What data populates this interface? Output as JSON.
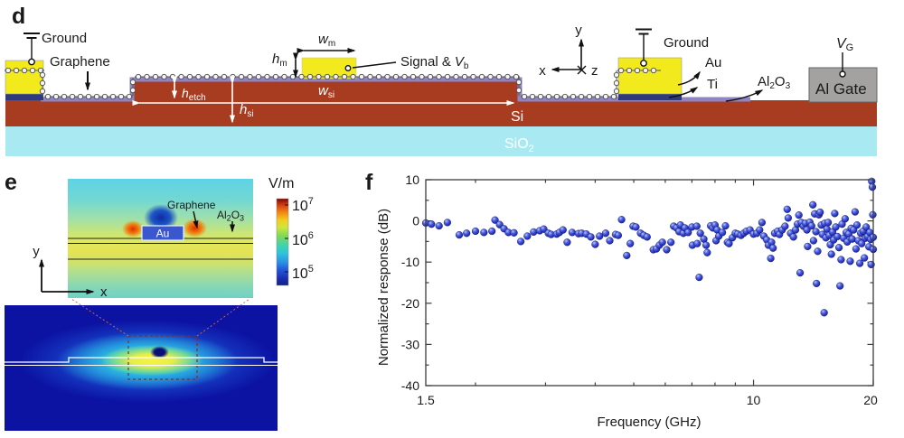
{
  "colors": {
    "au": "#f3ea1d",
    "ti": "#2e3a7c",
    "si": "#a83c20",
    "sio2": "#a9eaf2",
    "al2o3": "#8f85c4",
    "gate": "#a3a2a1",
    "marker": "#2a33c0",
    "sim_bg": "#0c12a2",
    "colorbar_scale": [
      "#7a0403",
      "#d23b10",
      "#f08012",
      "#f3cf1e",
      "#cfe63d",
      "#7fd957",
      "#3fd3b0",
      "#2fc4dc",
      "#2b93e4",
      "#2357d8",
      "#1a2fb0",
      "#101f86"
    ]
  },
  "panels": {
    "d": {
      "tag": "d",
      "labels": {
        "ground_left": "Ground",
        "graphene": "Graphene",
        "wm": {
          "base": "w",
          "sub": "m"
        },
        "hm": {
          "base": "h",
          "sub": "m"
        },
        "signal_amp": "Signal &",
        "vb": {
          "base": "V",
          "sub": "b"
        },
        "wsi": {
          "base": "w",
          "sub": "si"
        },
        "hetch": {
          "base": "h",
          "sub": "etch"
        },
        "hsi": {
          "base": "h",
          "sub": "si"
        },
        "si": "Si",
        "sio2": {
          "base": "SiO",
          "sub": "2"
        },
        "ground_right": "Ground",
        "au": "Au",
        "ti": "Ti",
        "al2o3": {
          "p1": "Al",
          "s1": "2",
          "p2": "O",
          "s2": "3"
        },
        "al_gate": "Al Gate",
        "vg": {
          "base": "V",
          "sub": "G"
        },
        "axis_x": "x",
        "axis_y": "y",
        "axis_z": "z"
      }
    },
    "e": {
      "tag": "e",
      "colorbar": {
        "title": "V/m",
        "ticks": [
          {
            "base": "10",
            "sup": "7"
          },
          {
            "base": "10",
            "sup": "6"
          },
          {
            "base": "10",
            "sup": "5"
          }
        ]
      },
      "inset": {
        "graphene": "Graphene",
        "al2o3": {
          "p1": "Al",
          "s1": "2",
          "p2": "O",
          "s2": "3"
        },
        "au": "Au"
      },
      "axis_x": "x",
      "axis_y": "y"
    },
    "f": {
      "tag": "f",
      "chart_data": {
        "type": "scatter",
        "x_scale": "log",
        "xlabel": "Frequency (GHz)",
        "ylabel": "Normalized response  (dB)",
        "xlim": [
          1.5,
          20
        ],
        "ylim": [
          -40,
          10
        ],
        "x_tick_labels": [
          {
            "v": 1.5,
            "t": "1.5"
          },
          {
            "v": 10,
            "t": "10"
          },
          {
            "v": 20,
            "t": "20"
          }
        ],
        "x_major_ticks": [
          10,
          20
        ],
        "x_minor_ticks": [
          2,
          3,
          4,
          5,
          6,
          7,
          8,
          9
        ],
        "y_ticks": [
          10,
          0,
          -10,
          -20,
          -30,
          -40
        ],
        "y_minor_ticks": [
          5,
          -5,
          -15,
          -25,
          -35
        ],
        "legend": "none",
        "grid": false,
        "marker": "sphere",
        "marker_color": "#2a33c0",
        "points": [
          [
            1.5,
            -0.5
          ],
          [
            1.55,
            -0.8
          ],
          [
            1.62,
            -1.2
          ],
          [
            1.7,
            -0.4
          ],
          [
            1.82,
            -3.4
          ],
          [
            1.9,
            -3.0
          ],
          [
            2.0,
            -2.5
          ],
          [
            2.1,
            -2.8
          ],
          [
            2.2,
            -2.5
          ],
          [
            2.24,
            0.2
          ],
          [
            2.3,
            -0.9
          ],
          [
            2.36,
            -1.9
          ],
          [
            2.42,
            -2.8
          ],
          [
            2.5,
            -2.9
          ],
          [
            2.6,
            -5.0
          ],
          [
            2.7,
            -3.7
          ],
          [
            2.8,
            -2.7
          ],
          [
            2.9,
            -2.4
          ],
          [
            2.97,
            -2.0
          ],
          [
            3.05,
            -3.0
          ],
          [
            3.1,
            -3.3
          ],
          [
            3.2,
            -3.2
          ],
          [
            3.25,
            -2.8
          ],
          [
            3.32,
            -2.2
          ],
          [
            3.4,
            -5.2
          ],
          [
            3.5,
            -2.8
          ],
          [
            3.63,
            -3.1
          ],
          [
            3.7,
            -3.0
          ],
          [
            3.8,
            -3.2
          ],
          [
            3.9,
            -3.9
          ],
          [
            4.0,
            -5.7
          ],
          [
            4.1,
            -3.7
          ],
          [
            4.25,
            -3.0
          ],
          [
            4.35,
            -4.8
          ],
          [
            4.5,
            -3.3
          ],
          [
            4.57,
            -3.5
          ],
          [
            4.66,
            0.3
          ],
          [
            4.8,
            -8.4
          ],
          [
            4.9,
            -5.5
          ],
          [
            4.98,
            -1.3
          ],
          [
            5.06,
            -1.5
          ],
          [
            5.2,
            -3.0
          ],
          [
            5.3,
            -3.5
          ],
          [
            5.4,
            -3.9
          ],
          [
            5.6,
            -7.0
          ],
          [
            5.7,
            -6.8
          ],
          [
            5.8,
            -5.9
          ],
          [
            5.9,
            -5.2
          ],
          [
            6.05,
            -7.0
          ],
          [
            6.2,
            -5.2
          ],
          [
            6.3,
            -1.3
          ],
          [
            6.4,
            -1.7
          ],
          [
            6.5,
            -2.6
          ],
          [
            6.55,
            -1.0
          ],
          [
            6.66,
            -3.0
          ],
          [
            6.72,
            -1.7
          ],
          [
            6.85,
            -2.8
          ],
          [
            7.0,
            -1.5
          ],
          [
            7.02,
            -5.9
          ],
          [
            7.2,
            -1.3
          ],
          [
            7.22,
            -5.5
          ],
          [
            7.3,
            -13.7
          ],
          [
            7.35,
            -3.0
          ],
          [
            7.5,
            -4.4
          ],
          [
            7.6,
            -5.9
          ],
          [
            7.65,
            -7.7
          ],
          [
            7.8,
            -1.2
          ],
          [
            7.9,
            -1.7
          ],
          [
            8.0,
            -1.0
          ],
          [
            8.05,
            -4.8
          ],
          [
            8.1,
            -2.2
          ],
          [
            8.18,
            -3.7
          ],
          [
            8.35,
            -2.8
          ],
          [
            8.5,
            -1.2
          ],
          [
            8.6,
            -5.2
          ],
          [
            8.68,
            -5.5
          ],
          [
            8.85,
            -4.1
          ],
          [
            9.0,
            -3.0
          ],
          [
            9.12,
            -3.2
          ],
          [
            9.3,
            -3.5
          ],
          [
            9.45,
            -3.0
          ],
          [
            9.6,
            -2.5
          ],
          [
            9.8,
            -2.2
          ],
          [
            10.0,
            -3.2
          ],
          [
            10.2,
            -3.0
          ],
          [
            10.36,
            -2.2
          ],
          [
            10.5,
            -0.4
          ],
          [
            10.62,
            -3.7
          ],
          [
            10.8,
            -4.6
          ],
          [
            10.9,
            -5.9
          ],
          [
            11.05,
            -9.1
          ],
          [
            11.1,
            -5.2
          ],
          [
            11.2,
            -6.6
          ],
          [
            11.3,
            -3.0
          ],
          [
            11.5,
            -2.5
          ],
          [
            11.62,
            -3.3
          ],
          [
            11.8,
            -2.2
          ],
          [
            12.0,
            -1.3
          ],
          [
            12.15,
            2.8
          ],
          [
            12.22,
            0.7
          ],
          [
            12.4,
            -3.0
          ],
          [
            12.6,
            -3.9
          ],
          [
            12.75,
            -2.2
          ],
          [
            12.9,
            -0.8
          ],
          [
            13.0,
            1.4
          ],
          [
            13.1,
            -12.6
          ],
          [
            13.2,
            -0.4
          ],
          [
            13.35,
            -1.3
          ],
          [
            13.5,
            -0.6
          ],
          [
            13.62,
            -2.2
          ],
          [
            13.68,
            -6.2
          ],
          [
            13.85,
            -0.3
          ],
          [
            14.0,
            -1.2
          ],
          [
            14.1,
            3.9
          ],
          [
            14.15,
            -4.8
          ],
          [
            14.25,
            1.7
          ],
          [
            14.35,
            -2.6
          ],
          [
            14.4,
            -15.2
          ],
          [
            14.5,
            -7.4
          ],
          [
            14.6,
            1.5
          ],
          [
            14.7,
            2.1
          ],
          [
            14.8,
            -1.0
          ],
          [
            14.9,
            -3.3
          ],
          [
            15.05,
            -22.3
          ],
          [
            15.1,
            -0.6
          ],
          [
            15.2,
            -4.1
          ],
          [
            15.3,
            -2.0
          ],
          [
            15.4,
            -0.4
          ],
          [
            15.5,
            -3.5
          ],
          [
            15.6,
            -5.8
          ],
          [
            15.7,
            -8.1
          ],
          [
            15.8,
            -2.7
          ],
          [
            15.9,
            -4.6
          ],
          [
            16.0,
            1.8
          ],
          [
            16.1,
            -1.5
          ],
          [
            16.25,
            -3.8
          ],
          [
            16.4,
            -6.5
          ],
          [
            16.5,
            -15.8
          ],
          [
            16.6,
            -9.4
          ],
          [
            16.7,
            -0.8
          ],
          [
            16.85,
            -4.2
          ],
          [
            17.0,
            0.5
          ],
          [
            17.1,
            -2.8
          ],
          [
            17.2,
            -5.1
          ],
          [
            17.35,
            -3.2
          ],
          [
            17.5,
            -9.8
          ],
          [
            17.6,
            -1.8
          ],
          [
            17.7,
            -4.4
          ],
          [
            17.85,
            -2.2
          ],
          [
            18.0,
            2.2
          ],
          [
            18.1,
            -6.8
          ],
          [
            18.2,
            -1.0
          ],
          [
            18.35,
            -4.8
          ],
          [
            18.5,
            -10.3
          ],
          [
            18.6,
            -3.0
          ],
          [
            18.7,
            -5.5
          ],
          [
            18.85,
            -2.5
          ],
          [
            19.0,
            -9.0
          ],
          [
            19.1,
            -4.2
          ],
          [
            19.2,
            -1.5
          ],
          [
            19.35,
            -3.8
          ],
          [
            19.5,
            -6.3
          ],
          [
            19.6,
            -2.8
          ],
          [
            19.7,
            -4.5
          ],
          [
            19.75,
            -10.6
          ],
          [
            19.82,
            9.6
          ],
          [
            19.9,
            8.2
          ],
          [
            19.95,
            1.5
          ],
          [
            20.0,
            -4.0
          ],
          [
            20.0,
            -6.9
          ]
        ]
      }
    }
  }
}
